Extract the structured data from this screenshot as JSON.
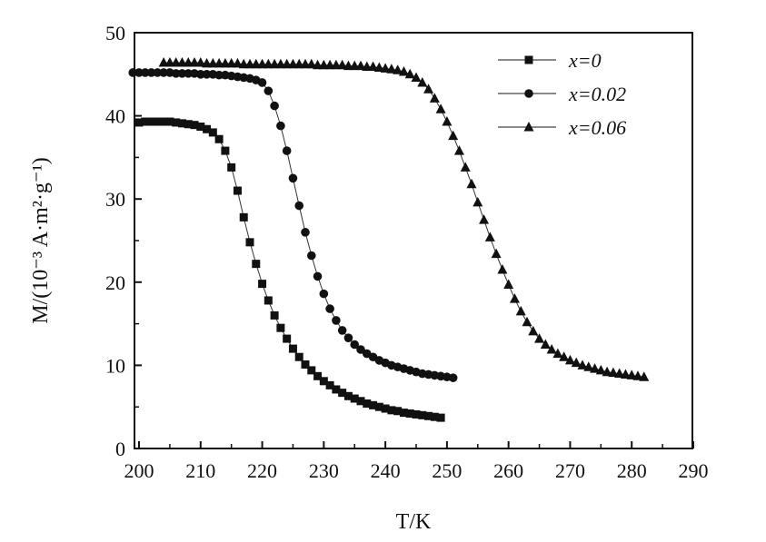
{
  "chart_data": {
    "type": "scatter",
    "xlabel": "T/K",
    "ylabel": "M/(10⁻³ A·m²·g⁻¹)",
    "xlim": [
      195,
      290
    ],
    "ylim": [
      0,
      50
    ],
    "xticks": [
      200,
      210,
      220,
      230,
      240,
      250,
      260,
      270,
      280,
      290
    ],
    "yticks": [
      0,
      10,
      20,
      30,
      40,
      50
    ],
    "xtick_labels": [
      "200",
      "210",
      "220",
      "230",
      "240",
      "250",
      "260",
      "270",
      "280",
      "290"
    ],
    "ytick_labels": [
      "0",
      "10",
      "20",
      "30",
      "40",
      "50"
    ],
    "grid": false,
    "legend_position": "top-right",
    "series": [
      {
        "name": "x=0",
        "marker": "square",
        "x": [
          200,
          201,
          202,
          203,
          204,
          205,
          206,
          207,
          208,
          209,
          210,
          211,
          212,
          213,
          214,
          215,
          216,
          217,
          218,
          219,
          220,
          221,
          222,
          223,
          224,
          225,
          226,
          227,
          228,
          229,
          230,
          231,
          232,
          233,
          234,
          235,
          236,
          237,
          238,
          239,
          240,
          241,
          242,
          243,
          244,
          245,
          246,
          247,
          248,
          249
        ],
        "y": [
          39.2,
          39.3,
          39.3,
          39.3,
          39.3,
          39.3,
          39.2,
          39.1,
          39.0,
          38.9,
          38.7,
          38.4,
          38.0,
          37.2,
          35.8,
          33.8,
          31.0,
          27.8,
          24.8,
          22.2,
          19.8,
          17.8,
          16.0,
          14.5,
          13.2,
          12.0,
          11.0,
          10.1,
          9.4,
          8.7,
          8.1,
          7.6,
          7.1,
          6.7,
          6.3,
          6.0,
          5.7,
          5.4,
          5.2,
          5.0,
          4.8,
          4.6,
          4.5,
          4.3,
          4.2,
          4.1,
          4.0,
          3.9,
          3.8,
          3.7
        ]
      },
      {
        "name": "x=0.02",
        "marker": "circle",
        "x": [
          199,
          200,
          201,
          202,
          203,
          204,
          205,
          206,
          207,
          208,
          209,
          210,
          211,
          212,
          213,
          214,
          215,
          216,
          217,
          218,
          219,
          220,
          221,
          222,
          223,
          224,
          225,
          226,
          227,
          228,
          229,
          230,
          231,
          232,
          233,
          234,
          235,
          236,
          237,
          238,
          239,
          240,
          241,
          242,
          243,
          244,
          245,
          246,
          247,
          248,
          249,
          250,
          251
        ],
        "y": [
          45.2,
          45.2,
          45.2,
          45.2,
          45.2,
          45.2,
          45.2,
          45.1,
          45.1,
          45.1,
          45.1,
          45.0,
          45.0,
          45.0,
          44.9,
          44.9,
          44.8,
          44.7,
          44.6,
          44.5,
          44.3,
          44.0,
          43.0,
          41.2,
          38.8,
          35.8,
          32.5,
          29.2,
          26.0,
          23.2,
          20.7,
          18.6,
          16.8,
          15.4,
          14.2,
          13.3,
          12.5,
          11.9,
          11.4,
          11.0,
          10.6,
          10.3,
          10.0,
          9.8,
          9.6,
          9.4,
          9.2,
          9.0,
          8.9,
          8.8,
          8.7,
          8.6,
          8.5
        ]
      },
      {
        "name": "x=0.06",
        "marker": "triangle",
        "x": [
          204,
          205,
          206,
          207,
          208,
          209,
          210,
          211,
          212,
          213,
          214,
          215,
          216,
          217,
          218,
          219,
          220,
          221,
          222,
          223,
          224,
          225,
          226,
          227,
          228,
          229,
          230,
          231,
          232,
          233,
          234,
          235,
          236,
          237,
          238,
          239,
          240,
          241,
          242,
          243,
          244,
          245,
          246,
          247,
          248,
          249,
          250,
          251,
          252,
          253,
          254,
          255,
          256,
          257,
          258,
          259,
          260,
          261,
          262,
          263,
          264,
          265,
          266,
          267,
          268,
          269,
          270,
          271,
          272,
          273,
          274,
          275,
          276,
          277,
          278,
          279,
          280,
          281,
          282
        ],
        "y": [
          46.4,
          46.4,
          46.4,
          46.4,
          46.4,
          46.4,
          46.4,
          46.3,
          46.3,
          46.3,
          46.3,
          46.3,
          46.3,
          46.2,
          46.2,
          46.2,
          46.2,
          46.2,
          46.2,
          46.2,
          46.2,
          46.2,
          46.2,
          46.2,
          46.2,
          46.1,
          46.1,
          46.1,
          46.1,
          46.1,
          46.0,
          46.0,
          46.0,
          45.9,
          45.9,
          45.8,
          45.7,
          45.6,
          45.5,
          45.3,
          45.0,
          44.6,
          44.0,
          43.2,
          42.1,
          40.8,
          39.3,
          37.6,
          35.8,
          33.8,
          31.8,
          29.6,
          27.5,
          25.4,
          23.4,
          21.5,
          19.7,
          18.0,
          16.5,
          15.2,
          14.1,
          13.2,
          12.5,
          11.9,
          11.4,
          11.0,
          10.6,
          10.3,
          10.0,
          9.8,
          9.6,
          9.4,
          9.2,
          9.1,
          9.0,
          8.9,
          8.8,
          8.7,
          8.6
        ]
      }
    ]
  }
}
